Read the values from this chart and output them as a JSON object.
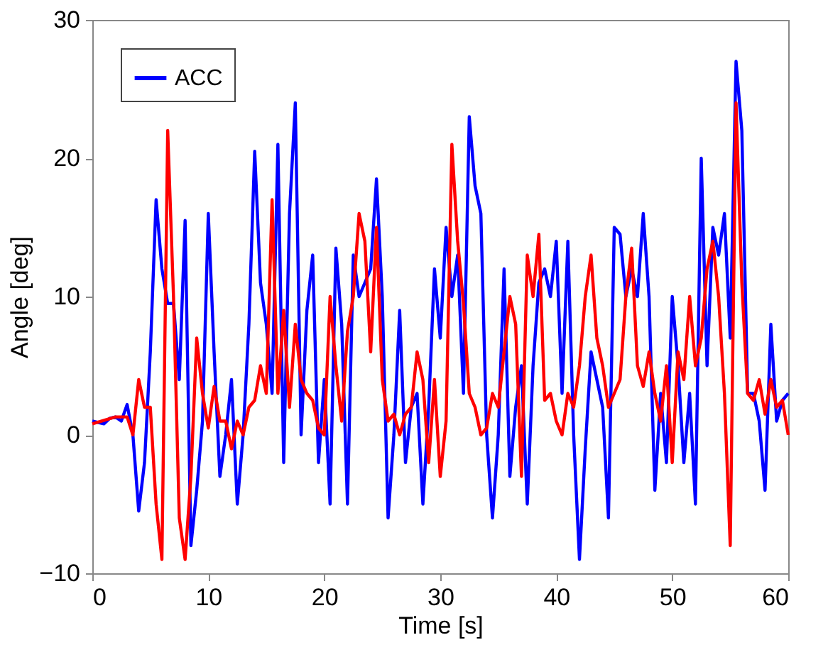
{
  "chart_data": {
    "type": "line",
    "xlabel": "Time [s]",
    "ylabel": "Angle [deg]",
    "xlim": [
      0,
      60
    ],
    "ylim": [
      -10,
      30
    ],
    "xticks": [
      0,
      10,
      20,
      30,
      40,
      50,
      60
    ],
    "yticks": [
      -10,
      0,
      10,
      20,
      30
    ],
    "grid": false,
    "legend": "top left",
    "line_style": "solid",
    "marker": "none",
    "series": [
      {
        "name": "ACC",
        "color": "#0000ff",
        "x": [
          0,
          1,
          1.5,
          2,
          2.5,
          3,
          3.5,
          4,
          4.5,
          5,
          5.5,
          6,
          6.5,
          7,
          7.5,
          8,
          8.5,
          9,
          9.5,
          10,
          10.5,
          11,
          11.5,
          12,
          12.5,
          13,
          13.5,
          14,
          14.5,
          15,
          15.5,
          16,
          16.5,
          17,
          17.5,
          18,
          18.5,
          19,
          19.5,
          20,
          20.5,
          21,
          21.5,
          22,
          22.5,
          23,
          23.5,
          24,
          24.5,
          25,
          25.5,
          26,
          26.5,
          27,
          27.5,
          28,
          28.5,
          29,
          29.5,
          30,
          30.5,
          31,
          31.5,
          32,
          32.5,
          33,
          33.5,
          34,
          34.5,
          35,
          35.5,
          36,
          36.5,
          37,
          37.5,
          38,
          38.5,
          39,
          39.5,
          40,
          40.5,
          41,
          41.5,
          42,
          42.5,
          43,
          43.5,
          44,
          44.5,
          45,
          45.5,
          46,
          46.5,
          47,
          47.5,
          48,
          48.5,
          49,
          49.5,
          50,
          50.5,
          51,
          51.5,
          52,
          52.5,
          53,
          53.5,
          54,
          54.5,
          55,
          55.5,
          56,
          56.5,
          57,
          57.5,
          58,
          58.5,
          59,
          59.5,
          60
        ],
        "values": [
          1,
          0.8,
          1.2,
          1.3,
          1,
          2.2,
          0,
          -5.5,
          -2,
          6,
          17,
          12,
          9.5,
          9.5,
          4,
          15.5,
          -8,
          -4,
          1,
          16,
          6,
          -3,
          0,
          4,
          -5,
          0,
          8,
          20.5,
          11,
          8,
          3,
          21,
          -2,
          16,
          24,
          0,
          9,
          13,
          -2,
          4,
          -5,
          13.5,
          8,
          -5,
          13,
          10,
          11,
          12,
          18.5,
          10,
          -6,
          0,
          9,
          -2,
          2,
          3,
          -5,
          2,
          12,
          7,
          15,
          10,
          13,
          3,
          23,
          18,
          16,
          0,
          -6,
          0,
          12,
          -3,
          2,
          5,
          -5,
          5,
          11,
          12,
          10,
          14,
          3,
          14,
          0,
          -9,
          -1,
          6,
          4,
          2,
          -6,
          15,
          14.5,
          10,
          12,
          10,
          16,
          10,
          -4,
          3,
          -2,
          10,
          5,
          -2,
          3,
          -5,
          20,
          5,
          15,
          13,
          16,
          7,
          27,
          22,
          3,
          3,
          1,
          -4,
          8,
          1,
          2.5,
          3
        ]
      },
      {
        "color": "#ff0000",
        "x": [
          0,
          2,
          3,
          3.5,
          4,
          4.5,
          5,
          5.5,
          6,
          6.5,
          7,
          7.5,
          8,
          8.5,
          9,
          9.5,
          10,
          10.5,
          11,
          11.5,
          12,
          12.5,
          13,
          13.5,
          14,
          14.5,
          15,
          15.5,
          16,
          16.5,
          17,
          17.5,
          18,
          18.5,
          19,
          19.5,
          20,
          20.5,
          21,
          21.5,
          22,
          22.5,
          23,
          23.5,
          24,
          24.5,
          25,
          25.5,
          26,
          26.5,
          27,
          27.5,
          28,
          28.5,
          29,
          29.5,
          30,
          30.5,
          31,
          31.5,
          32,
          32.5,
          33,
          33.5,
          34,
          34.5,
          35,
          35.5,
          36,
          36.5,
          37,
          37.5,
          38,
          38.5,
          39,
          39.5,
          40,
          40.5,
          41,
          41.5,
          42,
          42.5,
          43,
          43.5,
          44,
          44.5,
          45,
          45.5,
          46,
          46.5,
          47,
          47.5,
          48,
          48.5,
          49,
          49.5,
          50,
          50.5,
          51,
          51.5,
          52,
          52.5,
          53,
          53.5,
          54,
          54.5,
          55,
          55.5,
          56,
          56.5,
          57,
          57.5,
          58,
          58.5,
          59,
          59.5,
          60
        ],
        "values": [
          0.8,
          1.3,
          1.3,
          0,
          4,
          2,
          2,
          -5,
          -9,
          22,
          10,
          -6,
          -9,
          -3,
          7,
          3,
          0.5,
          3.5,
          1,
          1,
          -1,
          1,
          0,
          2,
          2.5,
          5,
          3,
          17,
          3,
          9,
          2,
          8,
          4,
          3,
          2.5,
          0.5,
          0,
          10,
          5,
          1,
          7.5,
          10,
          16,
          14,
          6,
          15,
          4,
          1,
          1.5,
          0,
          1.5,
          2,
          6,
          4,
          -2,
          4,
          -3,
          1,
          21,
          14,
          9.5,
          3,
          2,
          0,
          0.5,
          3,
          2,
          6,
          10,
          8,
          -3,
          13,
          10,
          14.5,
          2.5,
          3,
          1,
          0,
          3,
          2,
          5,
          10,
          13,
          7,
          5,
          2,
          3,
          4,
          10,
          13.5,
          5,
          3.5,
          6,
          3,
          1,
          5,
          -2,
          6,
          4,
          10,
          5,
          7,
          12,
          14,
          10,
          3,
          -8,
          24,
          11,
          3,
          2.5,
          4,
          1.5,
          4,
          2,
          2.5,
          0
        ]
      }
    ]
  }
}
